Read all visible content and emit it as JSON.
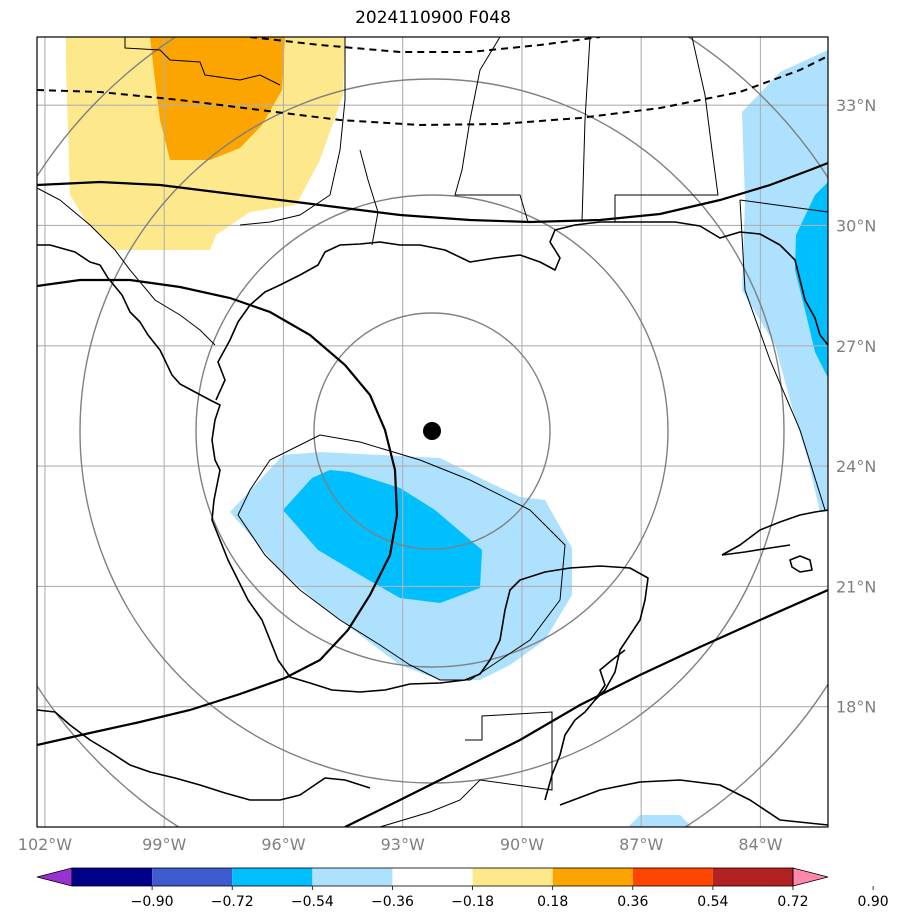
{
  "title": "2024110900 F048",
  "map": {
    "lon_range": [
      -102.2,
      -82.3
    ],
    "lat_range": [
      15.0,
      34.7
    ],
    "lon_ticks": [
      {
        "lon": -102,
        "label": "102°W"
      },
      {
        "lon": -99,
        "label": "99°W"
      },
      {
        "lon": -96,
        "label": "96°W"
      },
      {
        "lon": -93,
        "label": "93°W"
      },
      {
        "lon": -90,
        "label": "90°W"
      },
      {
        "lon": -87,
        "label": "87°W"
      },
      {
        "lon": -84,
        "label": "84°W"
      }
    ],
    "lat_ticks": [
      {
        "lat": 33,
        "label": "33°N"
      },
      {
        "lat": 30,
        "label": "30°N"
      },
      {
        "lat": 27,
        "label": "27°N"
      },
      {
        "lat": 24,
        "label": "24°N"
      },
      {
        "lat": 21,
        "label": "21°N"
      },
      {
        "lat": 18,
        "label": "18°N"
      }
    ],
    "grid": true,
    "storm_center": {
      "lon": -92.3,
      "lat": 24.9
    },
    "range_rings": "concentric gray rings around the storm center",
    "fill_colors": {
      "light_yellow": "#fde98c",
      "orange": "#fca500",
      "light_blue": "#ade1fe",
      "blue": "#00bfff"
    }
  },
  "colorbar": {
    "levels": [
      -0.9,
      -0.72,
      -0.54,
      -0.36,
      -0.18,
      0.18,
      0.36,
      0.54,
      0.72,
      0.9
    ],
    "labels": [
      "−0.90",
      "−0.72",
      "−0.54",
      "−0.36",
      "−0.18",
      "0.18",
      "0.36",
      "0.54",
      "0.72",
      "0.90"
    ],
    "colors": [
      "#9832d2",
      "#000088",
      "#3e5cd0",
      "#00bfff",
      "#ade1fe",
      "#ffffff",
      "#fde98c",
      "#fca500",
      "#ff4500",
      "#b32222",
      "#ff88aa"
    ],
    "extend": "both"
  }
}
